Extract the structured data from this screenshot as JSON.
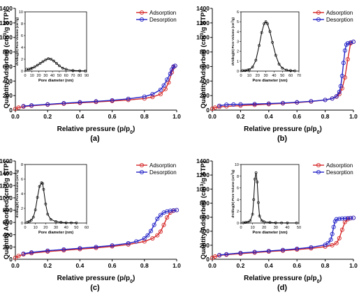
{
  "colors": {
    "adsorption": "#d62828",
    "desorption": "#2424c8",
    "inset_curve": "#000000",
    "axis": "#000000"
  },
  "chart_data": [
    {
      "type": "line",
      "panel_label": "(a)",
      "xlabel": "Relative pressure (p/p",
      "xlabel_sub": "0",
      "xlabel_tail": ")",
      "ylabel": "Quantity Adsorbed (cm",
      "ylabel_sup": "3",
      "ylabel_tail": "/g STP)",
      "xlim": [
        0,
        1.0
      ],
      "ylim": [
        0,
        1400
      ],
      "x_ticks": [
        "0.0",
        "0.2",
        "0.4",
        "0.6",
        "0.8",
        "1.0"
      ],
      "y_ticks": [
        "0",
        "200",
        "400",
        "600",
        "800",
        "1000",
        "1200",
        "1400"
      ],
      "legend": [
        "Adsorption",
        "Desorption"
      ],
      "series": [
        {
          "name": "Adsorption",
          "x": [
            0.0,
            0.02,
            0.05,
            0.1,
            0.2,
            0.3,
            0.4,
            0.5,
            0.6,
            0.7,
            0.8,
            0.85,
            0.9,
            0.93,
            0.95,
            0.97,
            0.98,
            0.99
          ],
          "y": [
            18,
            35,
            48,
            60,
            75,
            88,
            100,
            112,
            125,
            140,
            160,
            180,
            220,
            290,
            380,
            520,
            590,
            610
          ]
        },
        {
          "name": "Desorption",
          "x": [
            0.99,
            0.98,
            0.97,
            0.96,
            0.94,
            0.92,
            0.9,
            0.85,
            0.8,
            0.7,
            0.6,
            0.5,
            0.4,
            0.3,
            0.2,
            0.1,
            0.05
          ],
          "y": [
            610,
            600,
            560,
            500,
            420,
            340,
            280,
            220,
            185,
            155,
            135,
            120,
            108,
            95,
            80,
            65,
            55
          ]
        }
      ],
      "inset": {
        "xlabel": "Pore diameter (nm)",
        "ylabel": "dV/dlog(D) Pore Volume (cm",
        "ylabel_sup": "3",
        "ylabel_tail": "/g)",
        "xlim": [
          0,
          90
        ],
        "ylim": [
          0,
          10
        ],
        "x_ticks": [
          "0",
          "10",
          "20",
          "30",
          "40",
          "50",
          "60",
          "70",
          "80",
          "90"
        ],
        "y_ticks": [
          "0",
          "2",
          "4",
          "6",
          "8",
          "10"
        ],
        "x": [
          2,
          5,
          8,
          10,
          14,
          18,
          22,
          26,
          30,
          34,
          38,
          42,
          46,
          50,
          55,
          60,
          70,
          80,
          88
        ],
        "y": [
          0.3,
          0.3,
          0.4,
          0.5,
          0.7,
          1.0,
          1.3,
          1.6,
          1.9,
          2.1,
          2.0,
          1.7,
          1.3,
          0.9,
          0.5,
          0.3,
          0.1,
          0.05,
          0.02
        ]
      }
    },
    {
      "type": "line",
      "panel_label": "(b)",
      "xlabel": "Relative pressure (p/p",
      "xlabel_sub": "0",
      "xlabel_tail": ")",
      "ylabel": "Quantity Adsorbed (cm",
      "ylabel_sup": "3",
      "ylabel_tail": "/g STP)",
      "xlim": [
        0,
        1.0
      ],
      "ylim": [
        0,
        1400
      ],
      "x_ticks": [
        "0.0",
        "0.2",
        "0.4",
        "0.6",
        "0.8",
        "1.0"
      ],
      "y_ticks": [
        "0",
        "200",
        "400",
        "600",
        "800",
        "1000",
        "1200",
        "1400"
      ],
      "legend": [
        "Adsorption",
        "Desorption"
      ],
      "series": [
        {
          "name": "Adsorption",
          "x": [
            0.0,
            0.02,
            0.05,
            0.1,
            0.2,
            0.3,
            0.4,
            0.5,
            0.6,
            0.7,
            0.8,
            0.85,
            0.88,
            0.9,
            0.92,
            0.94,
            0.96,
            0.98,
            1.0
          ],
          "y": [
            20,
            35,
            45,
            52,
            62,
            72,
            82,
            92,
            104,
            118,
            140,
            160,
            185,
            220,
            300,
            450,
            700,
            920,
            940
          ]
        },
        {
          "name": "Desorption",
          "x": [
            1.0,
            0.98,
            0.96,
            0.95,
            0.94,
            0.93,
            0.92,
            0.91,
            0.9,
            0.88,
            0.85,
            0.8,
            0.7,
            0.6,
            0.5,
            0.4,
            0.3,
            0.2,
            0.15,
            0.1,
            0.05
          ],
          "y": [
            940,
            930,
            920,
            900,
            820,
            650,
            470,
            330,
            250,
            190,
            160,
            140,
            122,
            108,
            98,
            90,
            84,
            80,
            78,
            75,
            60
          ]
        }
      ],
      "inset": {
        "xlabel": "Pore diameter (nm)",
        "ylabel": "dV/dlog(D) Pore Volume (cm",
        "ylabel_sup": "3",
        "ylabel_tail": "/g)",
        "xlim": [
          0,
          70
        ],
        "ylim": [
          0,
          6
        ],
        "x_ticks": [
          "0",
          "10",
          "20",
          "30",
          "40",
          "50",
          "60",
          "70"
        ],
        "y_ticks": [
          "0",
          "1",
          "2",
          "3",
          "4",
          "5",
          "6"
        ],
        "x": [
          2,
          5,
          8,
          10,
          14,
          18,
          22,
          25,
          28,
          30,
          32,
          35,
          38,
          42,
          46,
          50,
          55,
          60,
          65
        ],
        "y": [
          0.05,
          0.05,
          0.1,
          0.15,
          0.4,
          1.1,
          2.6,
          3.9,
          4.8,
          5.0,
          4.8,
          4.0,
          2.9,
          1.6,
          0.7,
          0.3,
          0.1,
          0.05,
          0.03
        ]
      }
    },
    {
      "type": "line",
      "panel_label": "(c)",
      "xlabel": "Relative pressure (p/p",
      "xlabel_sub": "0",
      "xlabel_tail": ")",
      "ylabel": "Quantity Adsorbed (cm",
      "ylabel_sup": "3",
      "ylabel_tail": "/g STP)",
      "xlim": [
        0,
        1.0
      ],
      "ylim": [
        0,
        1600
      ],
      "x_ticks": [
        "0.0",
        "0.2",
        "0.4",
        "0.6",
        "0.8",
        "1.0"
      ],
      "y_ticks": [
        "0",
        "200",
        "400",
        "600",
        "800",
        "1000",
        "1200",
        "1400",
        "1600"
      ],
      "legend": [
        "Adsorption",
        "Desorption"
      ],
      "series": [
        {
          "name": "Adsorption",
          "x": [
            0.0,
            0.02,
            0.05,
            0.1,
            0.2,
            0.3,
            0.4,
            0.5,
            0.6,
            0.7,
            0.8,
            0.85,
            0.88,
            0.9,
            0.92,
            0.94,
            0.96,
            0.98,
            1.0
          ],
          "y": [
            25,
            55,
            80,
            100,
            125,
            145,
            165,
            185,
            210,
            240,
            290,
            340,
            390,
            450,
            560,
            680,
            760,
            790,
            800
          ]
        },
        {
          "name": "Desorption",
          "x": [
            1.0,
            0.98,
            0.96,
            0.94,
            0.92,
            0.9,
            0.88,
            0.86,
            0.84,
            0.82,
            0.8,
            0.75,
            0.7,
            0.6,
            0.5,
            0.4,
            0.3,
            0.2,
            0.1,
            0.05
          ],
          "y": [
            800,
            795,
            790,
            780,
            760,
            720,
            660,
            560,
            460,
            390,
            340,
            290,
            260,
            225,
            200,
            180,
            160,
            140,
            112,
            90
          ]
        }
      ],
      "inset": {
        "xlabel": "Pore diameter (nm)",
        "ylabel": "dV/dlog(D) Pore Volume (cm",
        "ylabel_sup": "3",
        "ylabel_tail": "/g)",
        "xlim": [
          0,
          60
        ],
        "ylim": [
          0,
          8
        ],
        "x_ticks": [
          "0",
          "10",
          "20",
          "30",
          "40",
          "50",
          "60"
        ],
        "y_ticks": [
          "0",
          "2",
          "4",
          "6",
          "8"
        ],
        "x": [
          2,
          4,
          6,
          8,
          10,
          12,
          14,
          16,
          17,
          18,
          20,
          22,
          25,
          30,
          35,
          40,
          45,
          50
        ],
        "y": [
          0.1,
          0.2,
          0.4,
          0.8,
          1.8,
          3.5,
          5.0,
          5.5,
          5.4,
          4.6,
          2.6,
          1.2,
          0.5,
          0.2,
          0.1,
          0.05,
          0.03,
          0.02
        ]
      }
    },
    {
      "type": "line",
      "panel_label": "(d)",
      "xlabel": "Relative pressure (p/p",
      "xlabel_sub": "0",
      "xlabel_tail": ")",
      "ylabel": "Quantity Adsorbed (cm",
      "ylabel_sup": "3",
      "ylabel_tail": "/g STP)",
      "xlim": [
        0,
        1.0
      ],
      "ylim": [
        0,
        1400
      ],
      "x_ticks": [
        "0.0",
        "0.2",
        "0.4",
        "0.6",
        "0.8",
        "1.0"
      ],
      "y_ticks": [
        "0",
        "200",
        "400",
        "600",
        "800",
        "1000",
        "1200",
        "1400"
      ],
      "legend": [
        "Adsorption",
        "Desorption"
      ],
      "series": [
        {
          "name": "Adsorption",
          "x": [
            0.0,
            0.02,
            0.05,
            0.1,
            0.2,
            0.3,
            0.4,
            0.5,
            0.6,
            0.7,
            0.8,
            0.85,
            0.88,
            0.9,
            0.92,
            0.94,
            0.96,
            0.98,
            1.0
          ],
          "y": [
            20,
            40,
            55,
            65,
            80,
            95,
            110,
            122,
            138,
            155,
            180,
            200,
            230,
            300,
            420,
            530,
            570,
            585,
            590
          ]
        },
        {
          "name": "Desorption",
          "x": [
            1.0,
            0.98,
            0.96,
            0.94,
            0.92,
            0.9,
            0.88,
            0.87,
            0.86,
            0.85,
            0.84,
            0.82,
            0.8,
            0.7,
            0.6,
            0.5,
            0.4,
            0.3,
            0.2,
            0.1,
            0.05
          ],
          "y": [
            590,
            588,
            585,
            582,
            580,
            575,
            570,
            540,
            460,
            360,
            280,
            230,
            205,
            170,
            150,
            132,
            118,
            104,
            90,
            72,
            60
          ]
        }
      ],
      "inset": {
        "xlabel": "Pore diameter (nm)",
        "ylabel": "dV/dlog(D) Pore Volume (cm",
        "ylabel_sup": "3",
        "ylabel_tail": "/g)",
        "xlim": [
          0,
          50
        ],
        "ylim": [
          0,
          10
        ],
        "x_ticks": [
          "0",
          "10",
          "20",
          "30",
          "40",
          "50"
        ],
        "y_ticks": [
          "0",
          "2",
          "4",
          "6",
          "8",
          "10"
        ],
        "x": [
          2,
          4,
          6,
          8,
          10,
          11,
          12,
          13,
          14,
          15,
          16,
          18,
          20,
          25,
          30,
          35,
          40,
          48
        ],
        "y": [
          0.05,
          0.1,
          0.15,
          0.4,
          1.5,
          4.0,
          7.5,
          8.6,
          7.0,
          3.5,
          1.2,
          0.4,
          0.2,
          0.1,
          0.05,
          0.03,
          0.02,
          0.01
        ]
      }
    }
  ]
}
